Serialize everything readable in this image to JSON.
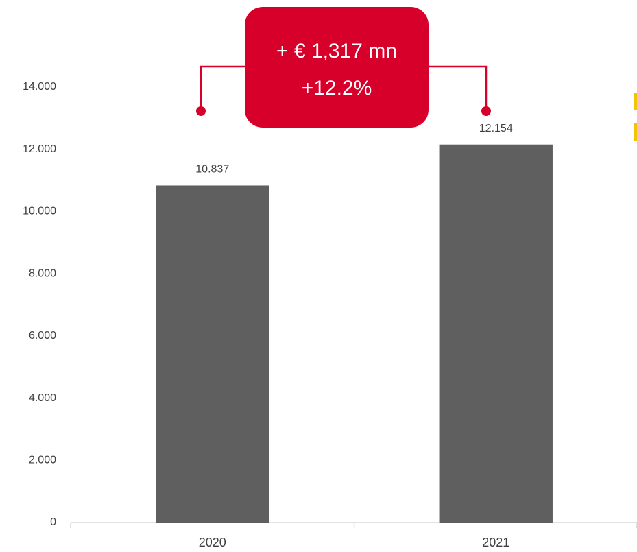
{
  "chart_data": {
    "type": "bar",
    "categories": [
      "2020",
      "2021"
    ],
    "values": [
      10837,
      12154
    ],
    "value_labels": [
      "10.837",
      "12.154"
    ],
    "color": "#5f5f5f",
    "ylim": [
      0,
      14000
    ],
    "yticks": [
      0,
      {
        "value": 2000,
        "label": "2.000"
      },
      {
        "value": 4000,
        "label": "4.000"
      },
      {
        "value": 6000,
        "label": "6.000"
      },
      {
        "value": 8000,
        "label": "8.000"
      },
      {
        "value": 10000,
        "label": "10.000"
      },
      {
        "value": 12000,
        "label": "12.000"
      },
      {
        "value": 14000,
        "label": "14.000"
      }
    ],
    "grid": false,
    "annotations": [
      "+ € 1,317 mn",
      "+12.2%"
    ]
  }
}
